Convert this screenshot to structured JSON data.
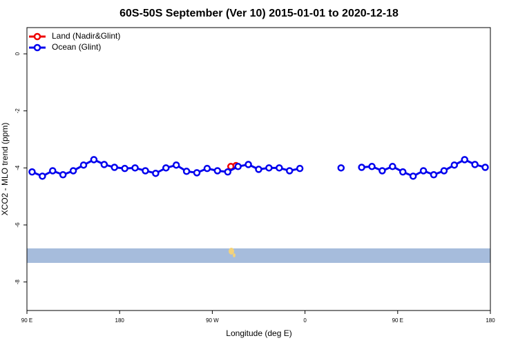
{
  "chart_data": {
    "type": "line",
    "title": "60S-50S September (Ver 10)   2015-01-01 to 2020-12-18",
    "x_label": "Longitude (deg E)",
    "y_label": "XCO2 - MLO trend (ppm)",
    "xlim": [
      90,
      540
    ],
    "ylim": [
      -9,
      0.92
    ],
    "xticks": [
      {
        "value": 90,
        "label": "90 E"
      },
      180,
      {
        "value": 270,
        "label": "90 W"
      },
      {
        "value": 360,
        "label": "0"
      },
      {
        "value": 450,
        "label": "90 E"
      },
      {
        "value": 540,
        "label": "180"
      }
    ],
    "yticks": [
      0,
      -2,
      -4,
      -6,
      -8
    ],
    "legend": "top-left",
    "series": [
      {
        "name": "Land (Nadir&Glint)",
        "color": "#ee0000",
        "x": [
          288,
          293
        ],
        "values": [
          -3.95,
          -3.92
        ]
      },
      {
        "name": "Ocean (Glint)",
        "color": "#0000ee",
        "x": [
          95,
          105,
          115,
          125,
          135,
          145,
          155,
          165,
          175,
          185,
          195,
          205,
          215,
          225,
          235,
          245,
          255,
          265,
          275,
          285,
          295,
          305,
          315,
          325,
          335,
          345,
          355,
          365,
          375,
          385,
          395,
          405,
          415,
          425,
          435,
          445,
          455,
          465,
          475,
          485,
          495,
          505,
          515,
          525,
          535
        ],
        "values": [
          -4.14,
          -4.29,
          -4.1,
          -4.24,
          -4.1,
          -3.9,
          -3.71,
          -3.88,
          -3.98,
          -4.02,
          -4.0,
          -4.1,
          -4.19,
          -4.0,
          -3.9,
          -4.12,
          -4.17,
          -4.02,
          -4.1,
          -4.14,
          -3.95,
          -3.88,
          -4.05,
          -4.0,
          -4.0,
          -4.1,
          -4.02,
          null,
          null,
          null,
          -4.0,
          null,
          -3.98,
          -3.95,
          -4.1,
          -3.95,
          -4.14,
          -4.29,
          -4.1,
          -4.24,
          -4.1,
          -3.9,
          -3.71,
          -3.88,
          -3.98
        ]
      }
    ]
  }
}
